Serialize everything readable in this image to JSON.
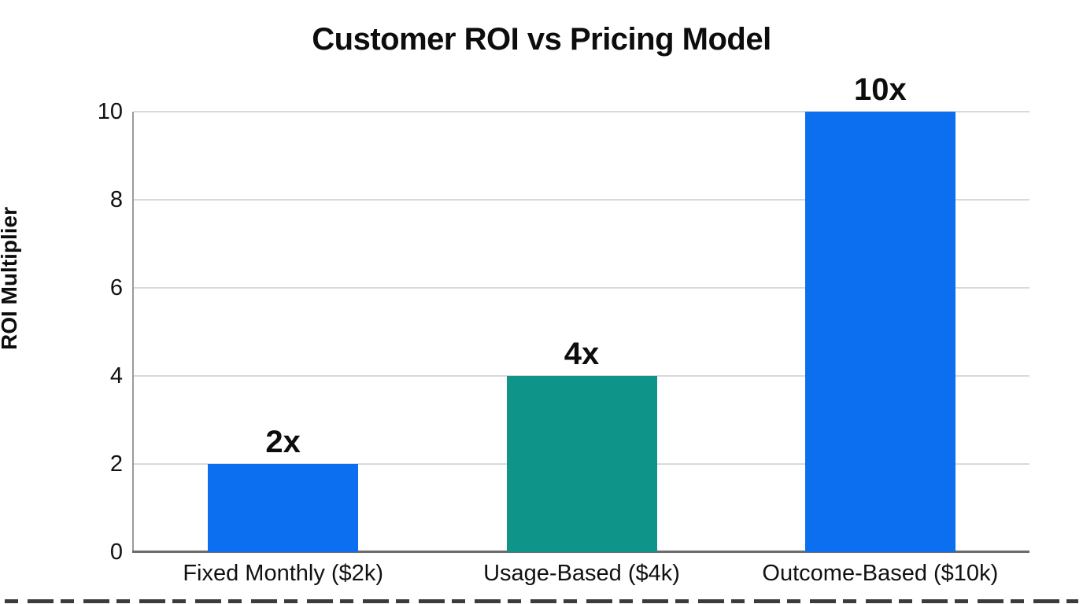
{
  "title": "Customer ROI vs Pricing Model",
  "colors": {
    "bar_blue": "#0b6ff0",
    "bar_teal": "#0f9489",
    "gridline": "#d9d9d9",
    "y_axis_line": "#9b9b9b",
    "baseline": "#6b6b6b",
    "text": "#0d0d0d"
  },
  "chart_data": {
    "type": "bar",
    "title": "Customer ROI vs Pricing Model",
    "ylabel": "ROI Multiplier",
    "xlabel": "",
    "categories": [
      "Fixed Monthly ($2k)",
      "Usage-Based ($4k)",
      "Outcome-Based ($10k)"
    ],
    "values": [
      2,
      4,
      10
    ],
    "bar_labels": [
      "2x",
      "4x",
      "10x"
    ],
    "bar_colors": [
      "#0b6ff0",
      "#0f9489",
      "#0b6ff0"
    ],
    "yticks": [
      0,
      2,
      4,
      6,
      8,
      10
    ],
    "ylim": [
      0,
      10
    ],
    "grid": "horizontal-only",
    "legend": "none",
    "background": "#ffffff"
  }
}
